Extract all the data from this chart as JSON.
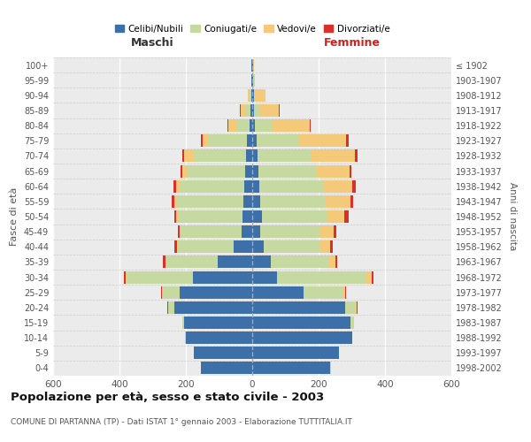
{
  "age_groups": [
    "0-4",
    "5-9",
    "10-14",
    "15-19",
    "20-24",
    "25-29",
    "30-34",
    "35-39",
    "40-44",
    "45-49",
    "50-54",
    "55-59",
    "60-64",
    "65-69",
    "70-74",
    "75-79",
    "80-84",
    "85-89",
    "90-94",
    "95-99",
    "100+"
  ],
  "birth_years": [
    "1998-2002",
    "1993-1997",
    "1988-1992",
    "1983-1987",
    "1978-1982",
    "1973-1977",
    "1968-1972",
    "1963-1967",
    "1958-1962",
    "1953-1957",
    "1948-1952",
    "1943-1947",
    "1938-1942",
    "1933-1937",
    "1928-1932",
    "1923-1927",
    "1918-1922",
    "1913-1917",
    "1908-1912",
    "1903-1907",
    "≤ 1902"
  ],
  "males": {
    "celibi": [
      155,
      175,
      200,
      205,
      235,
      220,
      180,
      105,
      55,
      32,
      30,
      28,
      25,
      22,
      20,
      15,
      8,
      5,
      3,
      2,
      2
    ],
    "coniugati": [
      1,
      1,
      2,
      5,
      18,
      50,
      200,
      155,
      170,
      185,
      195,
      200,
      195,
      175,
      155,
      115,
      40,
      15,
      5,
      2,
      1
    ],
    "vedovi": [
      0,
      0,
      0,
      0,
      1,
      1,
      2,
      1,
      2,
      3,
      5,
      8,
      10,
      15,
      30,
      20,
      25,
      15,
      5,
      0,
      0
    ],
    "divorziati": [
      0,
      0,
      0,
      1,
      2,
      3,
      5,
      8,
      8,
      5,
      6,
      8,
      8,
      5,
      5,
      5,
      2,
      2,
      1,
      0,
      0
    ]
  },
  "females": {
    "nubili": [
      235,
      260,
      300,
      295,
      280,
      155,
      75,
      55,
      35,
      25,
      28,
      25,
      22,
      18,
      15,
      12,
      8,
      5,
      4,
      2,
      2
    ],
    "coniugate": [
      1,
      1,
      2,
      10,
      30,
      120,
      270,
      175,
      170,
      180,
      195,
      195,
      195,
      175,
      160,
      130,
      50,
      20,
      5,
      2,
      1
    ],
    "vedove": [
      0,
      0,
      0,
      1,
      5,
      5,
      15,
      20,
      30,
      40,
      55,
      75,
      85,
      100,
      135,
      140,
      115,
      55,
      30,
      5,
      1
    ],
    "divorziate": [
      0,
      0,
      0,
      0,
      2,
      3,
      5,
      5,
      8,
      8,
      12,
      10,
      10,
      5,
      8,
      8,
      3,
      2,
      1,
      0,
      0
    ]
  },
  "colors": {
    "celibi": "#3d6fa8",
    "coniugati": "#c5d9a0",
    "vedovi": "#f5c97a",
    "divorziati": "#d9302a"
  },
  "title": "Popolazione per età, sesso e stato civile - 2003",
  "subtitle": "COMUNE DI PARTANNA (TP) - Dati ISTAT 1° gennaio 2003 - Elaborazione TUTTITALIA.IT",
  "xlabel_left": "Maschi",
  "xlabel_right": "Femmine",
  "ylabel_left": "Fasce di età",
  "ylabel_right": "Anni di nascita",
  "xlim": 600,
  "maschi_color": "#333333",
  "femmine_color": "#cc2222"
}
